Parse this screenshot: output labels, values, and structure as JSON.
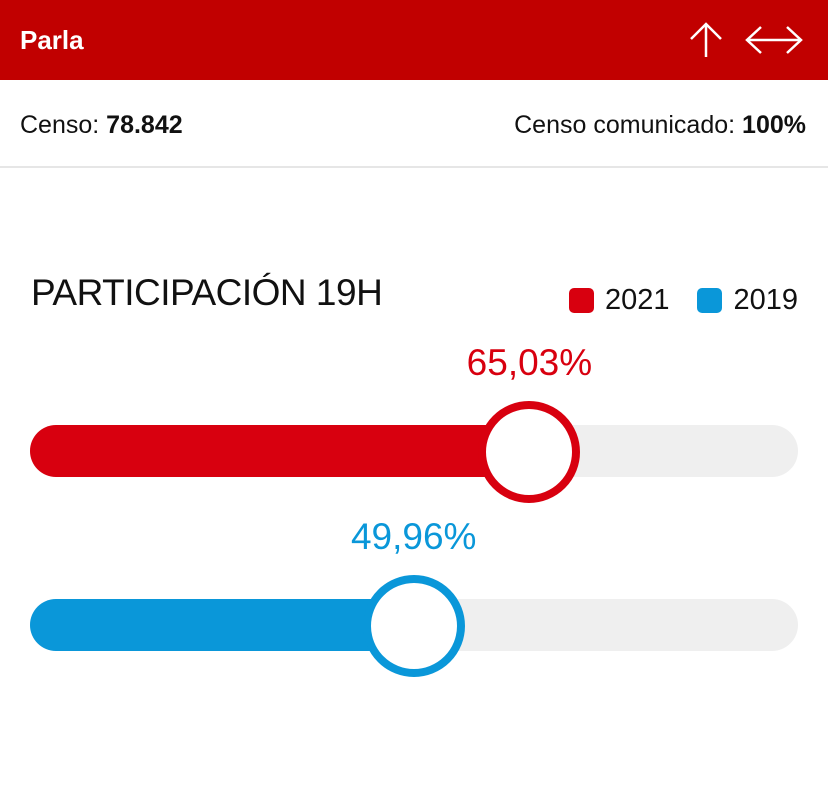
{
  "header": {
    "title": "Parla",
    "icons": [
      "arrow-up-icon",
      "expand-horizontal-icon"
    ],
    "background_color": "#c10000"
  },
  "censo": {
    "label": "Censo:",
    "value": "78.842",
    "comunicado_label": "Censo comunicado:",
    "comunicado_value": "100%"
  },
  "participacion": {
    "title": "PARTICIPACIÓN 19H",
    "legend": [
      {
        "label": "2021",
        "color": "#d8000f"
      },
      {
        "label": "2019",
        "color": "#0a97d9"
      }
    ],
    "bars": [
      {
        "year": "2021",
        "value_label": "65,03%",
        "value": 65.03,
        "color": "#d8000f"
      },
      {
        "year": "2019",
        "value_label": "49,96%",
        "value": 49.96,
        "color": "#0a97d9"
      }
    ]
  }
}
